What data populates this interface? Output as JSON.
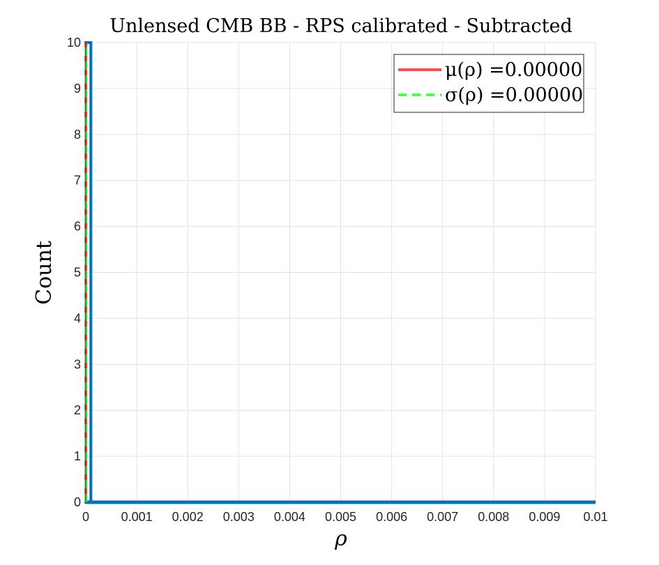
{
  "chart_data": {
    "type": "bar",
    "title": "Unlensed CMB BB - RPS calibrated - Subtracted",
    "xlabel": "ρ",
    "ylabel": "Count",
    "xlim": [
      0,
      0.01
    ],
    "ylim": [
      0,
      10
    ],
    "xticks": [
      0,
      0.001,
      0.002,
      0.003,
      0.004,
      0.005,
      0.006,
      0.007,
      0.008,
      0.009,
      0.01
    ],
    "xtick_labels": [
      "0",
      "0.001",
      "0.002",
      "0.003",
      "0.004",
      "0.005",
      "0.006",
      "0.007",
      "0.008",
      "0.009",
      "0.01"
    ],
    "yticks": [
      0,
      1,
      2,
      3,
      4,
      5,
      6,
      7,
      8,
      9,
      10
    ],
    "ytick_labels": [
      "0",
      "1",
      "2",
      "3",
      "4",
      "5",
      "6",
      "7",
      "8",
      "9",
      "10"
    ],
    "grid": true,
    "histogram": {
      "bin_edges": [
        0,
        0.0001
      ],
      "counts": [
        10
      ],
      "color": "#0072bd"
    },
    "lines": [
      {
        "name": "mean",
        "label": "μ(ρ) =0.00000",
        "x": 0,
        "style": "solid",
        "color": "#ff4d4d"
      },
      {
        "name": "std",
        "label": "σ(ρ) =0.00000",
        "x": 0,
        "style": "dashed",
        "color": "#4dff4d"
      }
    ],
    "legend": {
      "position": "top-right",
      "entries": [
        "μ(ρ) =0.00000",
        "σ(ρ) =0.00000"
      ]
    }
  }
}
